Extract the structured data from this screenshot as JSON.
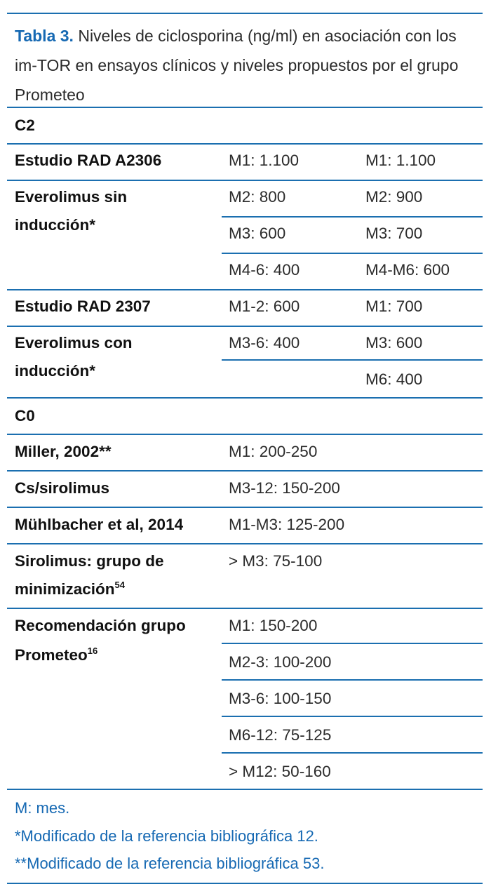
{
  "caption": {
    "label": "Tabla 3.",
    "text": "Niveles de ciclosporina (ng/ml) en asociación con los im-TOR en ensayos clínicos y niveles propuestos por el grupo Prometeo"
  },
  "sections": {
    "c2": "C2",
    "c0": "C0"
  },
  "rows": {
    "rad2306_label": "Estudio RAD A2306",
    "everolimus_sin_l1": "Everolimus sin",
    "everolimus_sin_l2": "inducción*",
    "rad2307_label": "Estudio RAD 2307",
    "everolimus_con_l1": "Everolimus con",
    "everolimus_con_l2": "inducción*",
    "miller_label": "Miller, 2002**",
    "cs_sirolimus_label": "Cs/sirolimus",
    "muhlbacher_label": "Mühlbacher et al, 2014",
    "sirolimus_l1": "Sirolimus: grupo de",
    "sirolimus_l2": "minimización",
    "sirolimus_ref": "54",
    "prometeo_l1": "Recomendación grupo",
    "prometeo_l2": "Prometeo",
    "prometeo_ref": "16"
  },
  "values": {
    "r1c1": "M1: 1.100",
    "r1c2": "M1: 1.100",
    "r2c1": "M2: 800",
    "r2c2": "M2: 900",
    "r3c1": "M3: 600",
    "r3c2": "M3: 700",
    "r4c1": "M4-6: 400",
    "r4c2": "M4-M6: 600",
    "r5c1": "M1-2: 600",
    "r5c2": "M1: 700",
    "r6c1": "M3-6: 400",
    "r6c2": "M3: 600",
    "r7c2": "M6: 400",
    "r8": "M1: 200-250",
    "r9": "M3-12: 150-200",
    "r10": "M1-M3: 125-200",
    "r11": "> M3: 75-100",
    "r12": "M1: 150-200",
    "r13": "M2-3: 100-200",
    "r14": "M3-6: 100-150",
    "r15": "M6-12: 75-125",
    "r16": "> M12: 50-160"
  },
  "notes": {
    "n1": "M: mes.",
    "n2": "*Modificado de la referencia bibliográfica 12.",
    "n3": "**Modificado de la referencia bibliográfica 53."
  },
  "colors": {
    "accent": "#1669b3",
    "rule": "#1b6fb0",
    "text": "#2b2b2b"
  }
}
